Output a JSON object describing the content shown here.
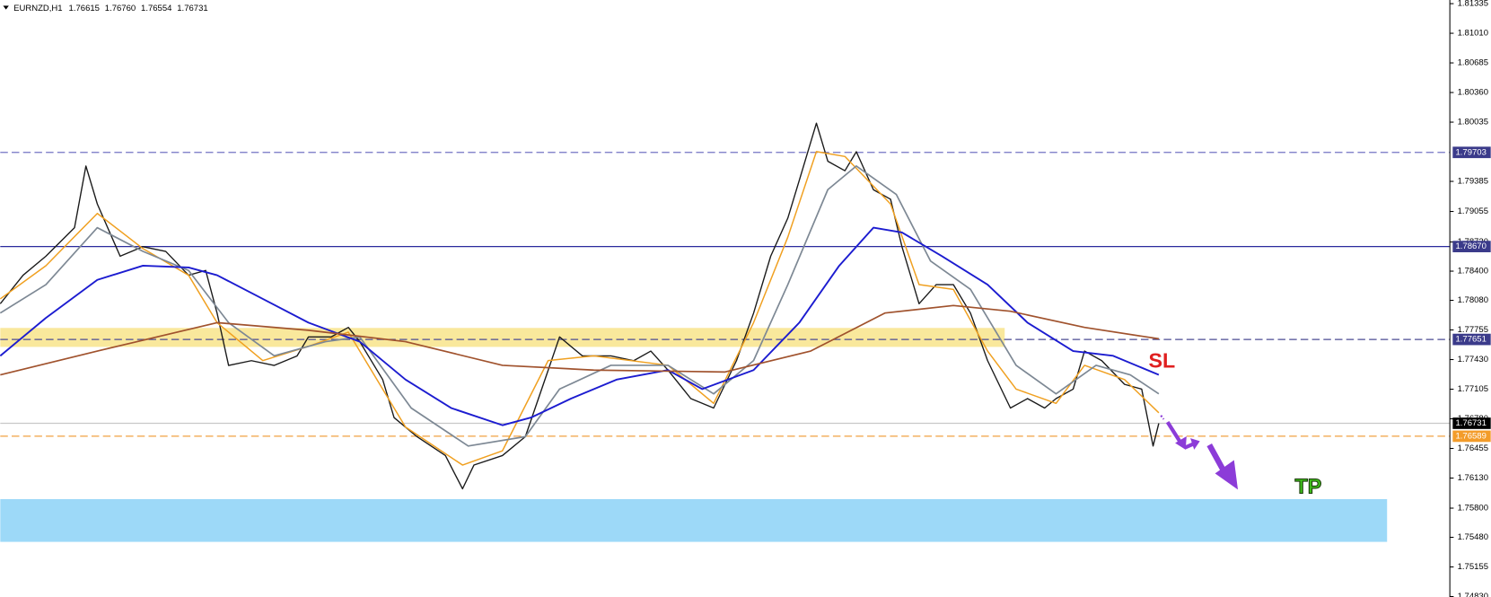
{
  "chart_data": {
    "type": "line",
    "header": {
      "symbol": "EURNZD,H1",
      "ohlc": [
        1.76615,
        1.7676,
        1.76554,
        1.76731
      ],
      "ohlc_labels": [
        "1.76615",
        "1.76760",
        "1.76554",
        "1.76731"
      ]
    },
    "xlim": [
      0,
      254
    ],
    "ylim": [
      1.74825,
      1.81375
    ],
    "grid": false,
    "yticks": [
      1.81335,
      {
        "value": 1.8101,
        "label": "1.81010"
      },
      1.80685,
      {
        "value": 1.8036,
        "label": "1.80360"
      },
      1.80035,
      1.79385,
      1.79055,
      {
        "value": 1.7872,
        "label": "1.78720"
      },
      {
        "value": 1.784,
        "label": "1.78400"
      },
      {
        "value": 1.7808,
        "label": "1.78080"
      },
      1.77755,
      {
        "value": 1.7743,
        "label": "1.77430"
      },
      1.77105,
      {
        "value": 1.7678,
        "label": "1.76780"
      },
      1.76455,
      {
        "value": 1.7613,
        "label": "1.76130"
      },
      {
        "value": 1.758,
        "label": "1.75800"
      },
      {
        "value": 1.7548,
        "label": "1.75480"
      },
      1.75155,
      {
        "value": 1.7483,
        "label": "1.74830"
      }
    ],
    "zones": [
      {
        "from": 0,
        "to": 176,
        "low": 1.77569,
        "high": 1.77777,
        "color": "#f9e89c"
      },
      {
        "from": 0,
        "to": 243,
        "low": 1.7543,
        "high": 1.75899,
        "color": "#9dd9f8"
      }
    ],
    "levels": [
      {
        "value": 1.79703,
        "color": "#7474c4",
        "label_bg": "#3a3a8a",
        "dashed": true
      },
      {
        "value": 1.7867,
        "label": "1.78670",
        "color": "#2b2b9e",
        "label_bg": "#3a3a8a",
        "dashed": false
      },
      {
        "value": 1.77651,
        "color": "#4c4c94",
        "label_bg": "#3a3a8a",
        "dashed": true
      },
      {
        "value": 1.76731,
        "color": "#c8c8c8",
        "label_bg": "#000000",
        "dashed": false
      },
      {
        "value": 1.76589,
        "color": "#f0a040",
        "label_bg": "#f39c2a",
        "dashed": true
      }
    ],
    "series": [
      {
        "color": "#1a1a1a",
        "width": 1.3,
        "x": [
          0,
          4,
          8,
          13,
          15,
          17,
          21,
          25,
          29,
          33,
          36,
          38,
          40,
          44,
          48,
          52,
          54,
          58,
          61,
          63,
          67,
          69,
          73,
          78,
          81,
          83,
          88,
          92,
          96,
          98,
          102,
          107,
          111,
          114,
          117,
          121,
          125,
          129,
          132,
          135,
          138,
          140,
          143,
          145,
          148,
          150,
          153,
          156,
          158,
          161,
          164,
          167,
          170,
          173,
          177,
          180,
          183,
          185,
          188,
          190,
          193,
          197,
          200,
          202,
          203
        ],
        "values": [
          1.78043,
          1.78356,
          1.78564,
          1.78877,
          1.79554,
          1.79137,
          1.78564,
          1.78668,
          1.78616,
          1.78356,
          1.78408,
          1.77939,
          1.77366,
          1.77418,
          1.77366,
          1.7747,
          1.77679,
          1.77679,
          1.77783,
          1.77627,
          1.7721,
          1.76793,
          1.76585,
          1.76377,
          1.76012,
          1.76273,
          1.76377,
          1.76585,
          1.77314,
          1.77679,
          1.7747,
          1.7747,
          1.77418,
          1.77523,
          1.77314,
          1.77002,
          1.76898,
          1.77418,
          1.77939,
          1.78564,
          1.78981,
          1.79398,
          1.80023,
          1.79606,
          1.79502,
          1.7971,
          1.79293,
          1.79189,
          1.78668,
          1.78043,
          1.78252,
          1.78252,
          1.77939,
          1.77418,
          1.76898,
          1.77002,
          1.76898,
          1.77002,
          1.77106,
          1.77523,
          1.77418,
          1.77158,
          1.77106,
          1.76481,
          1.76731
        ]
      },
      {
        "color": "#f0a020",
        "width": 1.4,
        "x": [
          0,
          8,
          17,
          25,
          33,
          38,
          46,
          54,
          61,
          71,
          81,
          88,
          96,
          104,
          117,
          125,
          132,
          138,
          143,
          148,
          156,
          161,
          167,
          173,
          178,
          185,
          190,
          197,
          203
        ],
        "values": [
          1.78096,
          1.7846,
          1.79033,
          1.78648,
          1.78356,
          1.77835,
          1.77419,
          1.77575,
          1.77731,
          1.7669,
          1.76273,
          1.76429,
          1.77419,
          1.77471,
          1.77367,
          1.7695,
          1.77835,
          1.78773,
          1.79711,
          1.79658,
          1.79137,
          1.78252,
          1.782,
          1.77523,
          1.77106,
          1.7695,
          1.77367,
          1.7721,
          1.76846
        ]
      },
      {
        "color": "#7d8894",
        "width": 1.6,
        "x": [
          0,
          8,
          17,
          25,
          33,
          40,
          48,
          57,
          63,
          72,
          82,
          92,
          98,
          107,
          117,
          125,
          132,
          138,
          145,
          150,
          157,
          163,
          170,
          178,
          185,
          192,
          198,
          203
        ],
        "values": [
          1.7794,
          1.78252,
          1.78877,
          1.78617,
          1.78408,
          1.77835,
          1.77471,
          1.77627,
          1.77679,
          1.76898,
          1.76481,
          1.76585,
          1.77106,
          1.77367,
          1.77367,
          1.77054,
          1.77419,
          1.78252,
          1.79294,
          1.79554,
          1.79242,
          1.78512,
          1.782,
          1.77367,
          1.77054,
          1.77367,
          1.77262,
          1.77054
        ]
      },
      {
        "color": "#1c1cd0",
        "width": 1.8,
        "x": [
          0,
          8,
          17,
          25,
          33,
          38,
          46,
          54,
          63,
          71,
          79,
          88,
          93,
          100,
          108,
          117,
          123,
          132,
          140,
          147,
          153,
          158,
          165,
          173,
          180,
          188,
          195,
          203
        ],
        "values": [
          1.77471,
          1.77887,
          1.78304,
          1.7846,
          1.7844,
          1.78356,
          1.78096,
          1.77835,
          1.77627,
          1.7721,
          1.76898,
          1.7671,
          1.76794,
          1.77002,
          1.7721,
          1.77315,
          1.77106,
          1.77315,
          1.77835,
          1.7846,
          1.78877,
          1.78825,
          1.78565,
          1.78252,
          1.77835,
          1.77523,
          1.77471,
          1.77262
        ]
      },
      {
        "color": "#a0522d",
        "width": 1.6,
        "x": [
          0,
          17,
          38,
          54,
          71,
          88,
          104,
          127,
          142,
          155,
          167,
          177,
          190,
          203
        ],
        "values": [
          1.77262,
          1.77523,
          1.77835,
          1.77752,
          1.77627,
          1.77367,
          1.77315,
          1.77294,
          1.77523,
          1.7794,
          1.78023,
          1.7796,
          1.77783,
          1.77658
        ]
      }
    ],
    "annotations": [
      {
        "text": "SL",
        "color": "#e02020"
      },
      {
        "text": "TP",
        "color": "#3dbb1a"
      }
    ]
  }
}
